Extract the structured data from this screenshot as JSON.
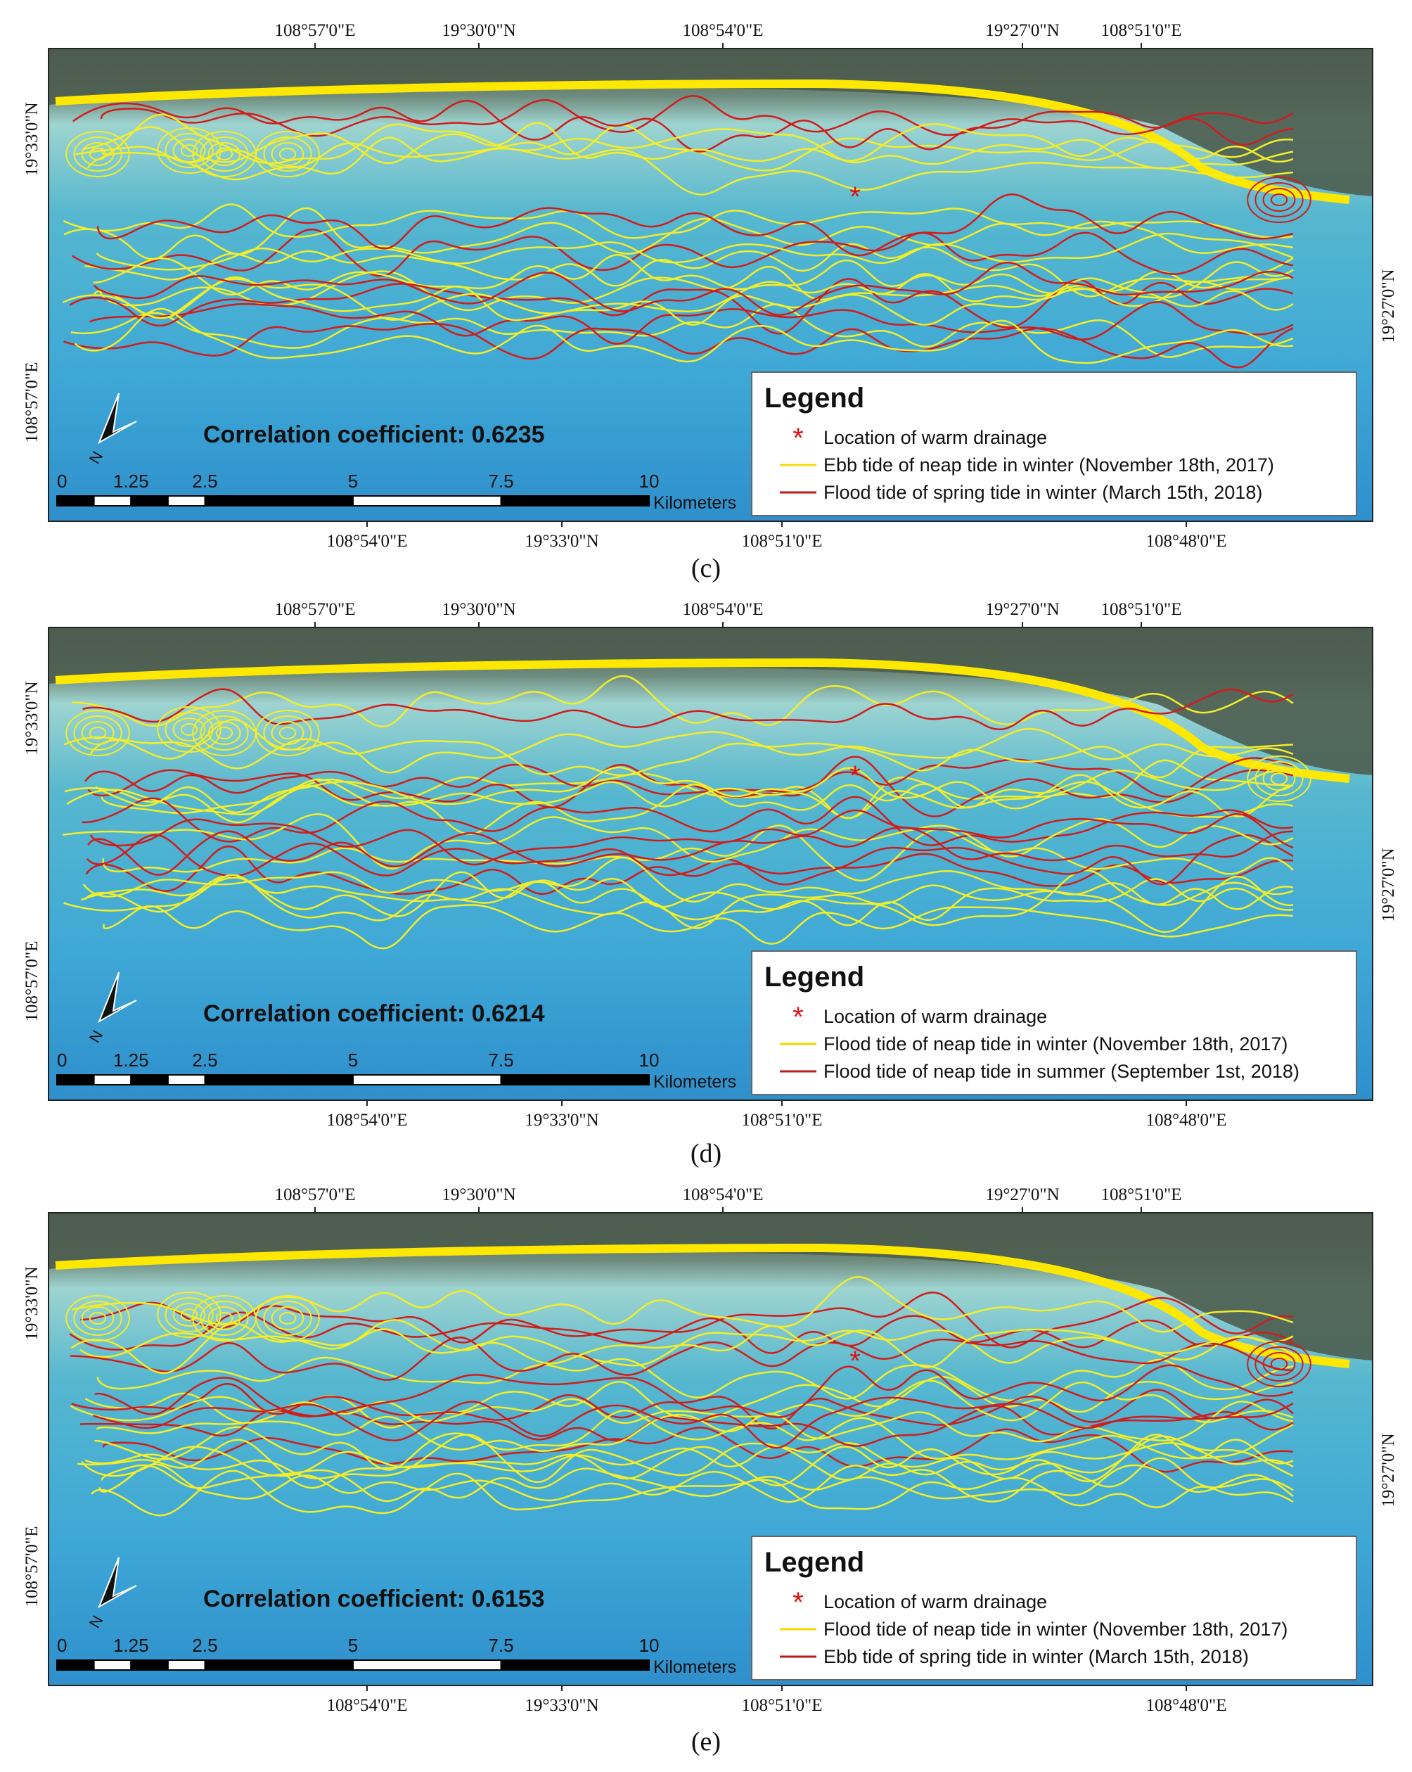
{
  "panels": [
    {
      "caption": "(c)",
      "top_labels": [
        "108°57'0\"E",
        "19°30'0\"N",
        "108°54'0\"E",
        "19°27'0\"N",
        "108°51'0\"E"
      ],
      "bottom_labels": [
        "108°54'0\"E",
        "19°33'0\"N",
        "108°51'0\"E",
        "108°48'0\"E"
      ],
      "left_labels": [
        "19°33'0\"N",
        "108°57'0\"E"
      ],
      "right_labels": [
        "19°27'0\"N"
      ],
      "correlation": "Correlation coefficient: 0.6235",
      "scale_labels": [
        0,
        1.25,
        2.5,
        5,
        7.5,
        10
      ],
      "scale_unit": "Kilometers",
      "legend": {
        "title": "Legend",
        "items": [
          "Location of warm drainage",
          "Ebb tide of neap tide in winter (November 18th, 2017)",
          "Flood tide of spring tide in winter (March 15th, 2018)"
        ]
      }
    },
    {
      "caption": "(d)",
      "top_labels": [
        "108°57'0\"E",
        "19°30'0\"N",
        "108°54'0\"E",
        "19°27'0\"N",
        "108°51'0\"E"
      ],
      "bottom_labels": [
        "108°54'0\"E",
        "19°33'0\"N",
        "108°51'0\"E",
        "108°48'0\"E"
      ],
      "left_labels": [
        "19°33'0\"N",
        "108°57'0\"E"
      ],
      "right_labels": [
        "19°27'0\"N"
      ],
      "correlation": "Correlation coefficient: 0.6214",
      "scale_labels": [
        0,
        1.25,
        2.5,
        5,
        7.5,
        10
      ],
      "scale_unit": "Kilometers",
      "legend": {
        "title": "Legend",
        "items": [
          "Location of warm drainage",
          "Flood tide of neap tide in winter (November 18th, 2017)",
          "Flood tide of neap tide in summer (September 1st, 2018)"
        ]
      }
    },
    {
      "caption": "(e)",
      "top_labels": [
        "108°57'0\"E",
        "19°30'0\"N",
        "108°54'0\"E",
        "19°27'0\"N",
        "108°51'0\"E"
      ],
      "bottom_labels": [
        "108°54'0\"E",
        "19°33'0\"N",
        "108°51'0\"E",
        "108°48'0\"E"
      ],
      "left_labels": [
        "19°33'0\"N",
        "108°57'0\"E"
      ],
      "right_labels": [
        "19°27'0\"N"
      ],
      "correlation": "Correlation coefficient: 0.6153",
      "scale_labels": [
        0,
        1.25,
        2.5,
        5,
        7.5,
        10
      ],
      "scale_unit": "Kilometers",
      "legend": {
        "title": "Legend",
        "items": [
          "Location of warm drainage",
          "Flood tide of neap tide in winter (November 18th, 2017)",
          "Ebb tide of spring tide in winter (March 15th, 2018)"
        ]
      }
    }
  ]
}
